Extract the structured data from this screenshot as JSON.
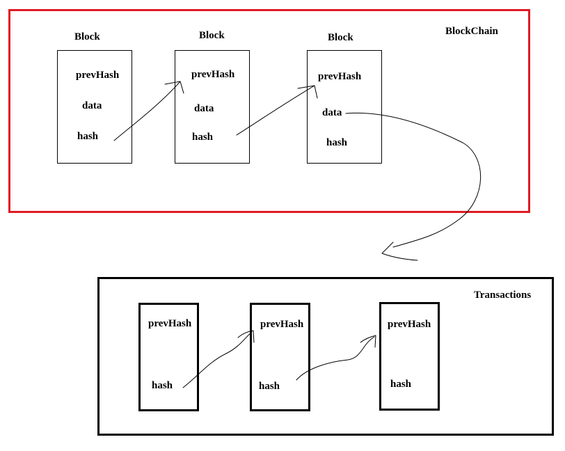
{
  "blockchain": {
    "title": "BlockChain",
    "blocks": [
      {
        "header": "Block",
        "fields": {
          "prev": "prevHash",
          "data": "data",
          "hash": "hash"
        }
      },
      {
        "header": "Block",
        "fields": {
          "prev": "prevHash",
          "data": "data",
          "hash": "hash"
        }
      },
      {
        "header": "Block",
        "fields": {
          "prev": "prevHash",
          "data": "data",
          "hash": "hash"
        }
      }
    ]
  },
  "transactions": {
    "title": "Transactions",
    "items": [
      {
        "fields": {
          "prev": "prevHash",
          "hash": "hash"
        }
      },
      {
        "fields": {
          "prev": "prevHash",
          "hash": "hash"
        }
      },
      {
        "fields": {
          "prev": "prevHash",
          "hash": "hash"
        }
      }
    ]
  },
  "colors": {
    "blockchain_border": "#e01b24",
    "transactions_border": "#000000",
    "ink": "#000000"
  }
}
